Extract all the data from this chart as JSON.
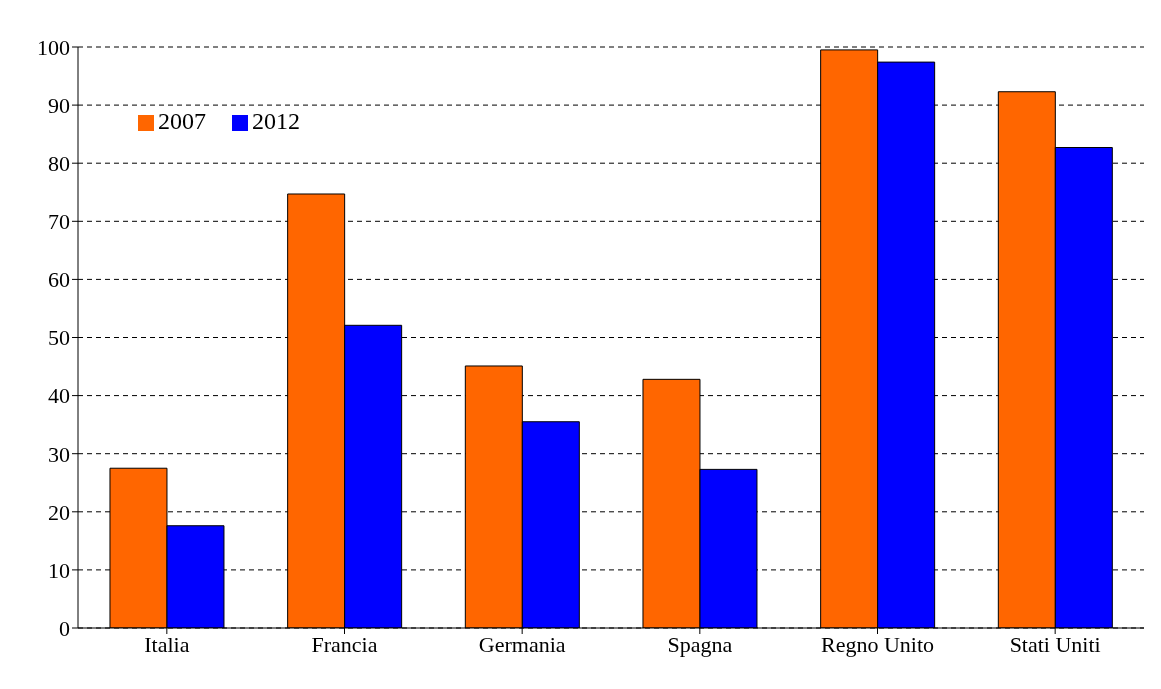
{
  "chart_data": {
    "type": "bar",
    "categories": [
      "Italia",
      "Francia",
      "Germania",
      "Spagna",
      "Regno Unito",
      "Stati Uniti"
    ],
    "series": [
      {
        "name": "2007",
        "color": "#ff6600",
        "values": [
          27.5,
          74.7,
          45.1,
          42.8,
          99.5,
          92.3
        ]
      },
      {
        "name": "2012",
        "color": "#0000ff",
        "values": [
          17.6,
          52.1,
          35.5,
          27.3,
          97.4,
          82.7
        ]
      }
    ],
    "ylim": [
      0,
      100
    ],
    "yticks": [
      0,
      10,
      20,
      30,
      40,
      50,
      60,
      70,
      80,
      90,
      100
    ],
    "grid": "y",
    "legend": "top left"
  }
}
